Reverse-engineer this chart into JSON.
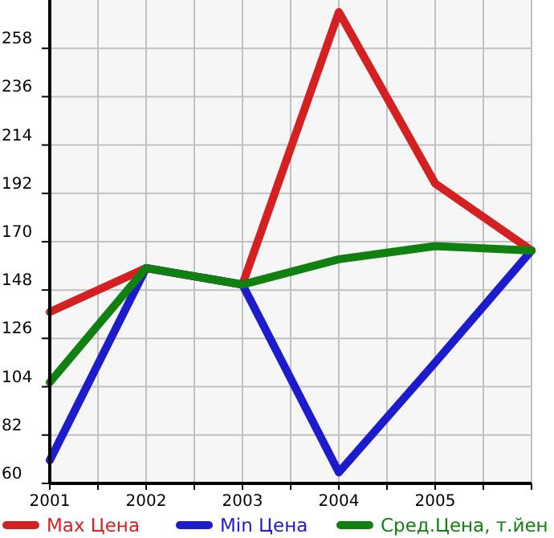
{
  "chart_data": {
    "type": "line",
    "x": [
      2001,
      2002,
      2003,
      2004,
      2005,
      2006
    ],
    "series": [
      {
        "name": "Max Цена",
        "color": "#d42020",
        "values": [
          138,
          158,
          150.5,
          274.5,
          196.5,
          166
        ]
      },
      {
        "name": "Min Цена",
        "color": "#1c1ccc",
        "values": [
          70.5,
          158,
          150.5,
          65,
          115,
          166
        ]
      },
      {
        "name": "Сред.Цена, т.йен",
        "color": "#108010",
        "values": [
          106,
          158,
          150.5,
          162,
          168,
          166
        ]
      }
    ],
    "xlim": [
      2001,
      2006
    ],
    "xticks": [
      2001,
      {
        "value": 2001.5,
        "label": null
      },
      2002,
      {
        "value": 2002.5,
        "label": null
      },
      2003,
      {
        "value": 2003.5,
        "label": null
      },
      2004,
      {
        "value": 2004.5,
        "label": null
      },
      2005,
      {
        "value": 2005.5,
        "label": null
      },
      {
        "value": 2006,
        "label": null
      }
    ],
    "ylim": [
      60,
      280
    ],
    "yticks": [
      60,
      82,
      104,
      126,
      148,
      170,
      192,
      214,
      236,
      258
    ],
    "grid": true,
    "legend": "bottom",
    "marker": "none",
    "line_style": "solid"
  }
}
